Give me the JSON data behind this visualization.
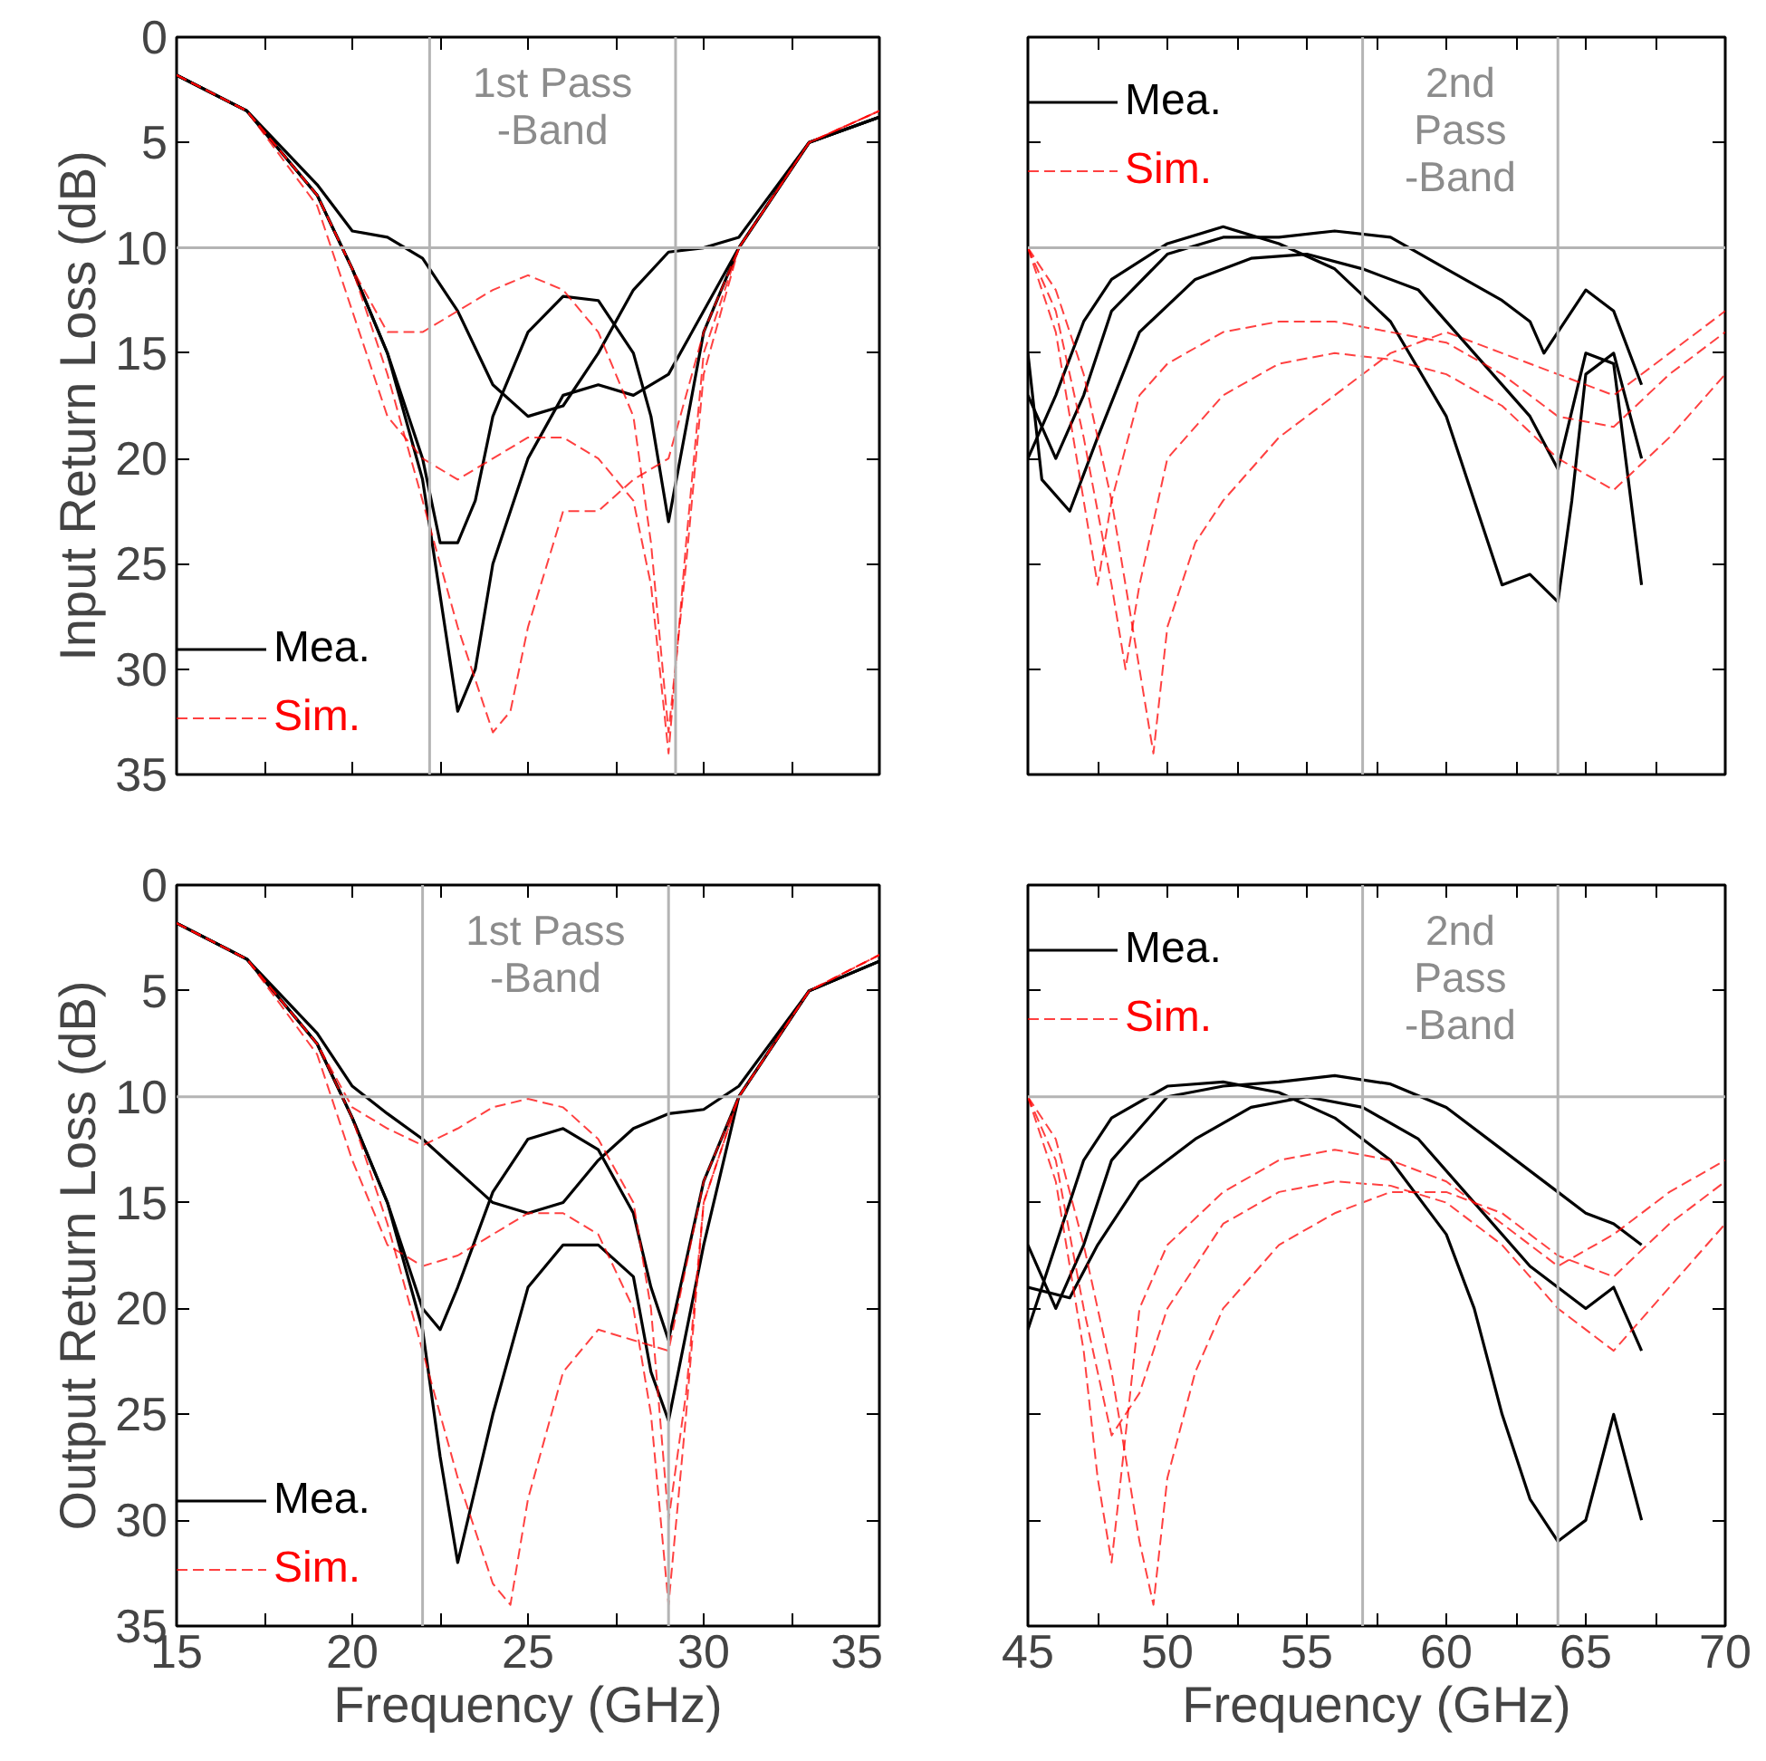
{
  "chart_data": [
    {
      "type": "line",
      "ylabel": "Input Return Loss (dB)",
      "xlim": [
        15,
        35
      ],
      "ylim": [
        35,
        0
      ],
      "xticks": [
        15,
        {
          "value": 17.5,
          "label": null
        },
        20,
        {
          "value": 22.5,
          "label": null
        },
        25,
        {
          "value": 27.5,
          "label": null
        },
        30,
        {
          "value": 32.5,
          "label": null
        },
        35
      ],
      "yticks": [
        0,
        5,
        10,
        15,
        20,
        25,
        30,
        35
      ],
      "tick_labels": "y",
      "grid": false,
      "legend": "bottom left",
      "annotations": [
        "1st Pass\n-Band"
      ],
      "ref_lines": [
        {
          "axis": "x",
          "value": 22.2,
          "color": "#b4b4b4"
        },
        {
          "axis": "x",
          "value": 29.2,
          "color": "#b4b4b4"
        },
        {
          "axis": "y",
          "value": 10,
          "color": "#b4b4b4"
        }
      ],
      "series": [
        {
          "name": "Mea.",
          "color": "#000000",
          "line_style": "solid",
          "x": [
            15,
            17,
            19,
            20,
            21,
            22,
            23,
            24,
            25,
            26,
            27,
            28,
            29,
            30,
            31,
            33,
            35
          ],
          "values": [
            1.8,
            3.5,
            7,
            9.2,
            9.5,
            10.5,
            13,
            16.5,
            18,
            17.5,
            15,
            12,
            10.2,
            10,
            9.5,
            5,
            3.8
          ]
        },
        {
          "color": "#000000",
          "line_style": "solid",
          "x": [
            15,
            17,
            19,
            20,
            21,
            22,
            22.5,
            23,
            23.5,
            24,
            25,
            26,
            27,
            28,
            28.5,
            29,
            30,
            31,
            33,
            35
          ],
          "values": [
            1.8,
            3.5,
            7.5,
            11,
            15,
            20,
            24,
            24,
            22,
            18,
            14,
            12.3,
            12.5,
            15,
            18,
            23,
            14,
            10,
            5,
            3.8
          ]
        },
        {
          "color": "#000000",
          "line_style": "solid",
          "x": [
            15,
            17,
            19,
            20,
            21,
            22,
            23,
            23.5,
            24,
            25,
            26,
            27,
            28,
            29,
            30,
            31,
            33,
            35
          ],
          "values": [
            1.8,
            3.5,
            7.5,
            11,
            15,
            21,
            32,
            30,
            25,
            20,
            17,
            16.5,
            17,
            16,
            13,
            10,
            5,
            3.8
          ]
        },
        {
          "name": "Sim.",
          "color": "#ff0000",
          "line_style": "dashed",
          "x": [
            15,
            17,
            19,
            20,
            21,
            22,
            23,
            24,
            25,
            26,
            27,
            28,
            28.5,
            29,
            29.5,
            30,
            31,
            33,
            35
          ],
          "values": [
            1.8,
            3.5,
            7.5,
            11,
            14,
            14,
            13,
            12,
            11.3,
            12,
            14,
            18,
            24,
            33,
            25,
            16,
            10,
            5,
            3.5
          ]
        },
        {
          "color": "#ff0000",
          "line_style": "dashed",
          "x": [
            15,
            17,
            19,
            20,
            21,
            22,
            23,
            24,
            25,
            26,
            27,
            28,
            28.5,
            29,
            29.5,
            30,
            31,
            33,
            35
          ],
          "values": [
            1.8,
            3.5,
            8,
            13,
            18,
            20,
            21,
            20,
            19,
            19,
            20,
            22,
            26,
            34,
            24,
            15,
            10,
            5,
            3.5
          ]
        },
        {
          "color": "#ff0000",
          "line_style": "dashed",
          "x": [
            15,
            17,
            19,
            20,
            21,
            22,
            23,
            24,
            24.5,
            25,
            26,
            27,
            28,
            29,
            30,
            31,
            33,
            35
          ],
          "values": [
            1.8,
            3.5,
            7.5,
            11,
            16,
            22,
            28,
            33,
            32,
            28,
            22.5,
            22.5,
            21,
            20,
            14,
            10,
            5,
            3.5
          ]
        }
      ]
    },
    {
      "type": "line",
      "xlim": [
        45,
        70
      ],
      "ylim": [
        35,
        0
      ],
      "xticks": [
        45,
        {
          "value": 47.5,
          "label": null
        },
        50,
        {
          "value": 52.5,
          "label": null
        },
        55,
        {
          "value": 57.5,
          "label": null
        },
        60,
        {
          "value": 62.5,
          "label": null
        },
        65,
        {
          "value": 67.5,
          "label": null
        },
        70
      ],
      "yticks": [
        0,
        5,
        10,
        15,
        20,
        25,
        30,
        35
      ],
      "tick_labels": false,
      "grid": false,
      "legend": "top left",
      "annotations": [
        "2nd\nPass\n-Band"
      ],
      "ref_lines": [
        {
          "axis": "x",
          "value": 57,
          "color": "#b4b4b4"
        },
        {
          "axis": "x",
          "value": 64,
          "color": "#b4b4b4"
        },
        {
          "axis": "y",
          "value": 10,
          "color": "#b4b4b4"
        }
      ],
      "series": [
        {
          "name": "Mea.",
          "color": "#000000",
          "line_style": "solid",
          "x": [
            45,
            46,
            47,
            48,
            50,
            52,
            54,
            56,
            58,
            60,
            62,
            63,
            63.5,
            64,
            65,
            66,
            67
          ],
          "values": [
            17,
            20,
            17,
            13,
            10.3,
            9.5,
            9.5,
            9.2,
            9.5,
            11,
            12.5,
            13.5,
            15,
            14,
            12,
            13,
            16.5
          ]
        },
        {
          "color": "#000000",
          "line_style": "solid",
          "x": [
            45,
            46,
            47,
            48,
            50,
            52,
            54,
            56,
            58,
            60,
            61,
            62,
            63,
            64,
            64.5,
            65,
            66,
            67
          ],
          "values": [
            20,
            17,
            13.5,
            11.5,
            9.8,
            9,
            9.8,
            11,
            13.5,
            18,
            22,
            26,
            25.5,
            26.8,
            22,
            16,
            15,
            20
          ]
        },
        {
          "color": "#000000",
          "line_style": "solid",
          "x": [
            45,
            45.5,
            46.5,
            47.5,
            49,
            51,
            53,
            55,
            57,
            59,
            61,
            63,
            64,
            65,
            66,
            67
          ],
          "values": [
            15,
            21,
            22.5,
            19,
            14,
            11.5,
            10.5,
            10.3,
            11,
            12,
            15,
            18,
            20.5,
            15,
            15.5,
            26
          ]
        },
        {
          "name": "Sim.",
          "color": "#ff0000",
          "line_style": "dashed",
          "x": [
            45,
            46,
            47,
            47.5,
            48,
            49,
            50,
            52,
            54,
            56,
            58,
            60,
            62,
            64,
            66,
            68,
            70
          ],
          "values": [
            10,
            14,
            22,
            26,
            22,
            17,
            15.5,
            14,
            13.5,
            13.5,
            14,
            14.5,
            16,
            18,
            18.5,
            16,
            14
          ]
        },
        {
          "color": "#ff0000",
          "line_style": "dashed",
          "x": [
            45,
            46,
            47,
            48,
            48.5,
            49,
            50,
            52,
            54,
            56,
            58,
            60,
            62,
            64,
            66,
            68,
            70
          ],
          "values": [
            10,
            13,
            19,
            26,
            30,
            26,
            20,
            17,
            15.5,
            15,
            15.3,
            16,
            17.5,
            20,
            21.5,
            19,
            16
          ]
        },
        {
          "color": "#ff0000",
          "line_style": "dashed",
          "x": [
            45,
            46,
            47,
            48,
            49,
            49.5,
            50,
            51,
            52,
            54,
            56,
            58,
            60,
            62,
            64,
            66,
            68,
            70
          ],
          "values": [
            10,
            12,
            16,
            22,
            30,
            34,
            28,
            24,
            22,
            19,
            17,
            15,
            14,
            15,
            16,
            17,
            15,
            13
          ]
        }
      ]
    },
    {
      "type": "line",
      "xlabel": "Frequency (GHz)",
      "ylabel": "Output Return Loss (dB)",
      "xlim": [
        15,
        35
      ],
      "ylim": [
        35,
        0
      ],
      "xticks": [
        15,
        {
          "value": 17.5,
          "label": null
        },
        20,
        {
          "value": 22.5,
          "label": null
        },
        25,
        {
          "value": 27.5,
          "label": null
        },
        30,
        {
          "value": 32.5,
          "label": null
        },
        35
      ],
      "yticks": [
        0,
        5,
        10,
        15,
        20,
        25,
        30,
        35
      ],
      "grid": false,
      "legend": "bottom left",
      "annotations": [
        "1st Pass\n-Band"
      ],
      "ref_lines": [
        {
          "axis": "x",
          "value": 22,
          "color": "#b4b4b4"
        },
        {
          "axis": "x",
          "value": 29,
          "color": "#b4b4b4"
        },
        {
          "axis": "y",
          "value": 10,
          "color": "#b4b4b4"
        }
      ],
      "series": [
        {
          "name": "Mea.",
          "color": "#000000",
          "line_style": "solid",
          "x": [
            15,
            17,
            19,
            20,
            21,
            22,
            23,
            24,
            25,
            26,
            27,
            28,
            29,
            30,
            31,
            33,
            35
          ],
          "values": [
            1.8,
            3.5,
            7,
            9.5,
            10.8,
            12,
            13.5,
            15,
            15.5,
            15,
            13,
            11.5,
            10.8,
            10.6,
            9.5,
            5,
            3.6
          ]
        },
        {
          "color": "#000000",
          "line_style": "solid",
          "x": [
            15,
            17,
            19,
            20,
            21,
            22,
            22.5,
            23,
            24,
            25,
            26,
            27,
            28,
            28.5,
            29,
            30,
            31,
            33,
            35
          ],
          "values": [
            1.8,
            3.5,
            7.5,
            11,
            15,
            20,
            21,
            19,
            14.5,
            12,
            11.5,
            12.5,
            15.5,
            19,
            21.5,
            14,
            10,
            5,
            3.6
          ]
        },
        {
          "color": "#000000",
          "line_style": "solid",
          "x": [
            15,
            17,
            19,
            20,
            21,
            22,
            22.5,
            23,
            24,
            25,
            26,
            27,
            28,
            28.5,
            29,
            30,
            31,
            33,
            35
          ],
          "values": [
            1.8,
            3.5,
            7.5,
            11,
            15,
            21,
            27,
            32,
            25,
            19,
            17,
            17,
            18.5,
            23,
            25.3,
            17,
            10,
            5,
            3.6
          ]
        },
        {
          "name": "Sim.",
          "color": "#ff0000",
          "line_style": "dashed",
          "x": [
            15,
            17,
            19,
            20,
            21,
            22,
            23,
            24,
            25,
            26,
            27,
            28,
            28.5,
            29,
            29.5,
            30,
            31,
            33,
            35
          ],
          "values": [
            1.8,
            3.5,
            7.5,
            10.5,
            11.5,
            12.3,
            11.5,
            10.5,
            10.1,
            10.5,
            12,
            15,
            20,
            30,
            24,
            15,
            10,
            5,
            3.3
          ]
        },
        {
          "color": "#ff0000",
          "line_style": "dashed",
          "x": [
            15,
            17,
            19,
            20,
            21,
            22,
            23,
            24,
            25,
            26,
            27,
            28,
            28.5,
            29,
            29.5,
            30,
            31,
            33,
            35
          ],
          "values": [
            1.8,
            3.5,
            8,
            13,
            17,
            18,
            17.5,
            16.5,
            15.5,
            15.5,
            16.5,
            20,
            25,
            34,
            25,
            15,
            10,
            5,
            3.3
          ]
        },
        {
          "color": "#ff0000",
          "line_style": "dashed",
          "x": [
            15,
            17,
            19,
            20,
            21,
            22,
            23,
            24,
            24.5,
            25,
            26,
            27,
            28,
            29,
            30,
            31,
            33,
            35
          ],
          "values": [
            1.8,
            3.5,
            7.5,
            11,
            16,
            22,
            28,
            33,
            34,
            29,
            23,
            21,
            21.5,
            22,
            14,
            10,
            5,
            3.3
          ]
        }
      ]
    },
    {
      "type": "line",
      "xlabel": "Frequency (GHz)",
      "xlim": [
        45,
        70
      ],
      "ylim": [
        35,
        0
      ],
      "xticks": [
        45,
        {
          "value": 47.5,
          "label": null
        },
        50,
        {
          "value": 52.5,
          "label": null
        },
        55,
        {
          "value": 57.5,
          "label": null
        },
        60,
        {
          "value": 62.5,
          "label": null
        },
        65,
        {
          "value": 67.5,
          "label": null
        },
        70
      ],
      "yticks": [
        0,
        5,
        10,
        15,
        20,
        25,
        30,
        35
      ],
      "tick_labels": "x",
      "grid": false,
      "legend": "top left",
      "annotations": [
        "2nd\nPass\n-Band"
      ],
      "ref_lines": [
        {
          "axis": "x",
          "value": 57,
          "color": "#b4b4b4"
        },
        {
          "axis": "x",
          "value": 64,
          "color": "#b4b4b4"
        },
        {
          "axis": "y",
          "value": 10,
          "color": "#b4b4b4"
        }
      ],
      "series": [
        {
          "name": "Mea.",
          "color": "#000000",
          "line_style": "solid",
          "x": [
            45,
            46,
            47,
            48,
            50,
            52,
            54,
            56,
            58,
            60,
            62,
            64,
            65,
            66,
            67
          ],
          "values": [
            17,
            20,
            17,
            13,
            10,
            9.5,
            9.3,
            9,
            9.4,
            10.5,
            12.5,
            14.5,
            15.5,
            16,
            17
          ]
        },
        {
          "color": "#000000",
          "line_style": "solid",
          "x": [
            45,
            46,
            47,
            48,
            50,
            52,
            54,
            56,
            58,
            60,
            61,
            62,
            63,
            64,
            65,
            66,
            67
          ],
          "values": [
            21,
            17,
            13,
            11,
            9.5,
            9.3,
            9.8,
            11,
            13,
            16.5,
            20,
            25,
            29,
            31,
            30,
            25,
            30
          ]
        },
        {
          "color": "#000000",
          "line_style": "solid",
          "x": [
            45,
            46.5,
            47.5,
            49,
            51,
            53,
            55,
            57,
            59,
            61,
            63,
            65,
            66,
            67
          ],
          "values": [
            19,
            19.5,
            17,
            14,
            12,
            10.5,
            10,
            10.5,
            12,
            15,
            18,
            20,
            19,
            22
          ]
        },
        {
          "name": "Sim.",
          "color": "#ff0000",
          "line_style": "dashed",
          "x": [
            45,
            46,
            47,
            47.5,
            48,
            48.5,
            49,
            50,
            52,
            54,
            56,
            58,
            60,
            62,
            64,
            66,
            68,
            70
          ],
          "values": [
            10,
            14,
            22,
            28,
            32,
            26,
            20,
            17,
            14.5,
            13,
            12.5,
            13,
            14,
            16,
            18,
            16.5,
            14.5,
            13
          ]
        },
        {
          "color": "#ff0000",
          "line_style": "dashed",
          "x": [
            45,
            46,
            47,
            48,
            49,
            49.5,
            50,
            51,
            52,
            54,
            56,
            58,
            60,
            62,
            64,
            66,
            68,
            70
          ],
          "values": [
            10,
            12,
            17,
            23,
            31,
            34,
            28,
            23,
            20,
            17,
            15.5,
            14.5,
            14.5,
            15.5,
            17.5,
            18.5,
            16,
            14
          ]
        },
        {
          "color": "#ff0000",
          "line_style": "dashed",
          "x": [
            45,
            46,
            47,
            48,
            49,
            50,
            52,
            54,
            56,
            58,
            60,
            62,
            64,
            66,
            68,
            70
          ],
          "values": [
            10,
            13,
            20,
            26,
            24,
            20,
            16,
            14.5,
            14,
            14.2,
            15,
            17,
            20,
            22,
            19,
            16
          ]
        }
      ]
    }
  ]
}
